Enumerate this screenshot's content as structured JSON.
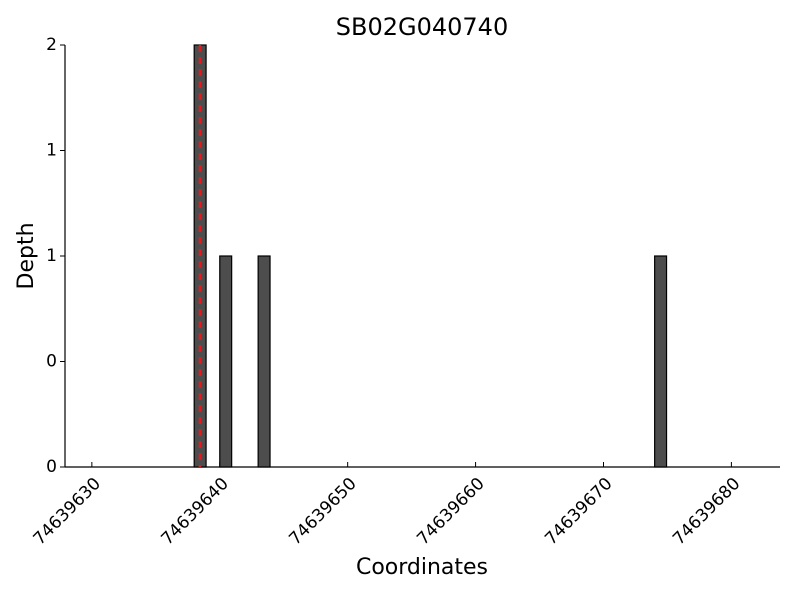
{
  "chart_data": {
    "type": "bar",
    "title": "SB02G040740",
    "x_label": "Coordinates",
    "y_label": "Depth",
    "x": [
      74639638,
      74639640,
      74639643,
      74639674
    ],
    "values": [
      2,
      1,
      1,
      1
    ],
    "color": "#4d4d4d",
    "marker_x": 74639638.45,
    "marker_color": "#e41a1c",
    "xlim": [
      74639627.9,
      74639683.8
    ],
    "xticks": [
      74639630,
      74639640,
      74639650,
      74639660,
      74639670,
      74639680
    ],
    "ylim": [
      0,
      2
    ],
    "yticks": [
      {
        "value": 0,
        "label": "0"
      },
      {
        "value": 0.5,
        "label": "0"
      },
      {
        "value": 1,
        "label": "1"
      },
      {
        "value": 1.5,
        "label": "1"
      },
      {
        "value": 2,
        "label": "2"
      }
    ],
    "grid": false
  }
}
